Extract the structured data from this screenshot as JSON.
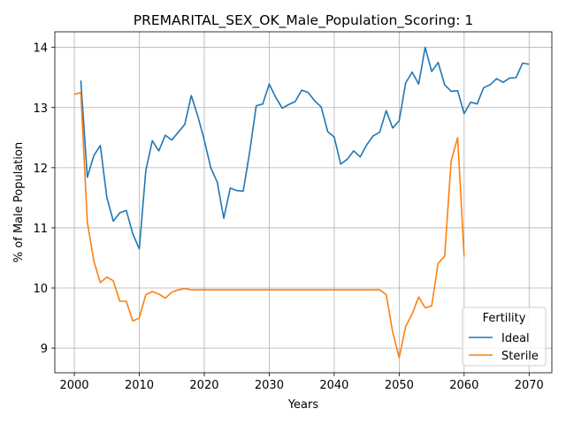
{
  "chart_data": {
    "type": "line",
    "title": "PREMARITAL_SEX_OK_Male_Population_Scoring: 1",
    "xlabel": "Years",
    "ylabel": "% of Male Population",
    "xlim": [
      1997,
      2073.5
    ],
    "ylim": [
      8.59,
      14.26
    ],
    "xticks": [
      2000,
      2010,
      2020,
      2030,
      2040,
      2050,
      2060,
      2070
    ],
    "yticks": [
      9,
      10,
      11,
      12,
      13,
      14
    ],
    "grid": true,
    "legend": {
      "title": "Fertility",
      "placement": "lower right"
    },
    "series": [
      {
        "name": "Ideal",
        "color": "#1f77b4",
        "x": [
          2001,
          2002,
          2003,
          2004,
          2005,
          2006,
          2007,
          2008,
          2009,
          2010,
          2011,
          2012,
          2013,
          2014,
          2015,
          2016,
          2017,
          2018,
          2019,
          2020,
          2021,
          2022,
          2023,
          2024,
          2025,
          2026,
          2027,
          2028,
          2029,
          2030,
          2031,
          2032,
          2033,
          2034,
          2035,
          2036,
          2037,
          2038,
          2039,
          2040,
          2041,
          2042,
          2043,
          2044,
          2045,
          2046,
          2047,
          2048,
          2049,
          2050,
          2051,
          2052,
          2053,
          2054,
          2055,
          2056,
          2057,
          2058,
          2059,
          2060,
          2061,
          2062,
          2063,
          2064,
          2065,
          2066,
          2067,
          2068,
          2069,
          2070
        ],
        "values": [
          13.45,
          11.84,
          12.2,
          12.37,
          11.51,
          11.11,
          11.25,
          11.29,
          10.9,
          10.65,
          11.95,
          12.45,
          12.28,
          12.54,
          12.46,
          12.59,
          12.72,
          13.2,
          12.86,
          12.46,
          12.0,
          11.76,
          11.16,
          11.66,
          11.62,
          11.61,
          12.27,
          13.03,
          13.06,
          13.39,
          13.17,
          12.99,
          13.05,
          13.1,
          13.29,
          13.25,
          13.11,
          13.01,
          12.6,
          12.51,
          12.06,
          12.14,
          12.28,
          12.18,
          12.38,
          12.53,
          12.59,
          12.95,
          12.66,
          12.78,
          13.41,
          13.59,
          13.39,
          14.0,
          13.6,
          13.75,
          13.38,
          13.27,
          13.28,
          12.9,
          13.09,
          13.06,
          13.33,
          13.38,
          13.48,
          13.42,
          13.49,
          13.5,
          13.74,
          13.72
        ]
      },
      {
        "name": "Sterile",
        "color": "#ff7f0e",
        "x": [
          2000,
          2001,
          2002,
          2003,
          2004,
          2005,
          2006,
          2007,
          2008,
          2009,
          2010,
          2011,
          2012,
          2013,
          2014,
          2015,
          2016,
          2017,
          2018,
          2019,
          2020,
          2021,
          2022,
          2023,
          2024,
          2025,
          2026,
          2027,
          2028,
          2029,
          2030,
          2031,
          2032,
          2033,
          2034,
          2035,
          2036,
          2037,
          2038,
          2039,
          2040,
          2041,
          2042,
          2043,
          2044,
          2045,
          2046,
          2047,
          2048,
          2049,
          2050,
          2051,
          2052,
          2053,
          2054,
          2055,
          2056,
          2057,
          2058,
          2059,
          2060
        ],
        "values": [
          13.22,
          13.25,
          11.1,
          10.45,
          10.09,
          10.18,
          10.12,
          9.78,
          9.78,
          9.45,
          9.5,
          9.89,
          9.94,
          9.9,
          9.83,
          9.93,
          9.97,
          9.99,
          9.97,
          9.97,
          9.97,
          9.97,
          9.97,
          9.97,
          9.97,
          9.97,
          9.97,
          9.97,
          9.97,
          9.97,
          9.97,
          9.97,
          9.97,
          9.97,
          9.97,
          9.97,
          9.97,
          9.97,
          9.97,
          9.97,
          9.97,
          9.97,
          9.97,
          9.97,
          9.97,
          9.97,
          9.97,
          9.97,
          9.89,
          9.27,
          8.84,
          9.36,
          9.57,
          9.85,
          9.67,
          9.7,
          10.41,
          10.53,
          12.11,
          12.5,
          10.52
        ]
      }
    ]
  }
}
